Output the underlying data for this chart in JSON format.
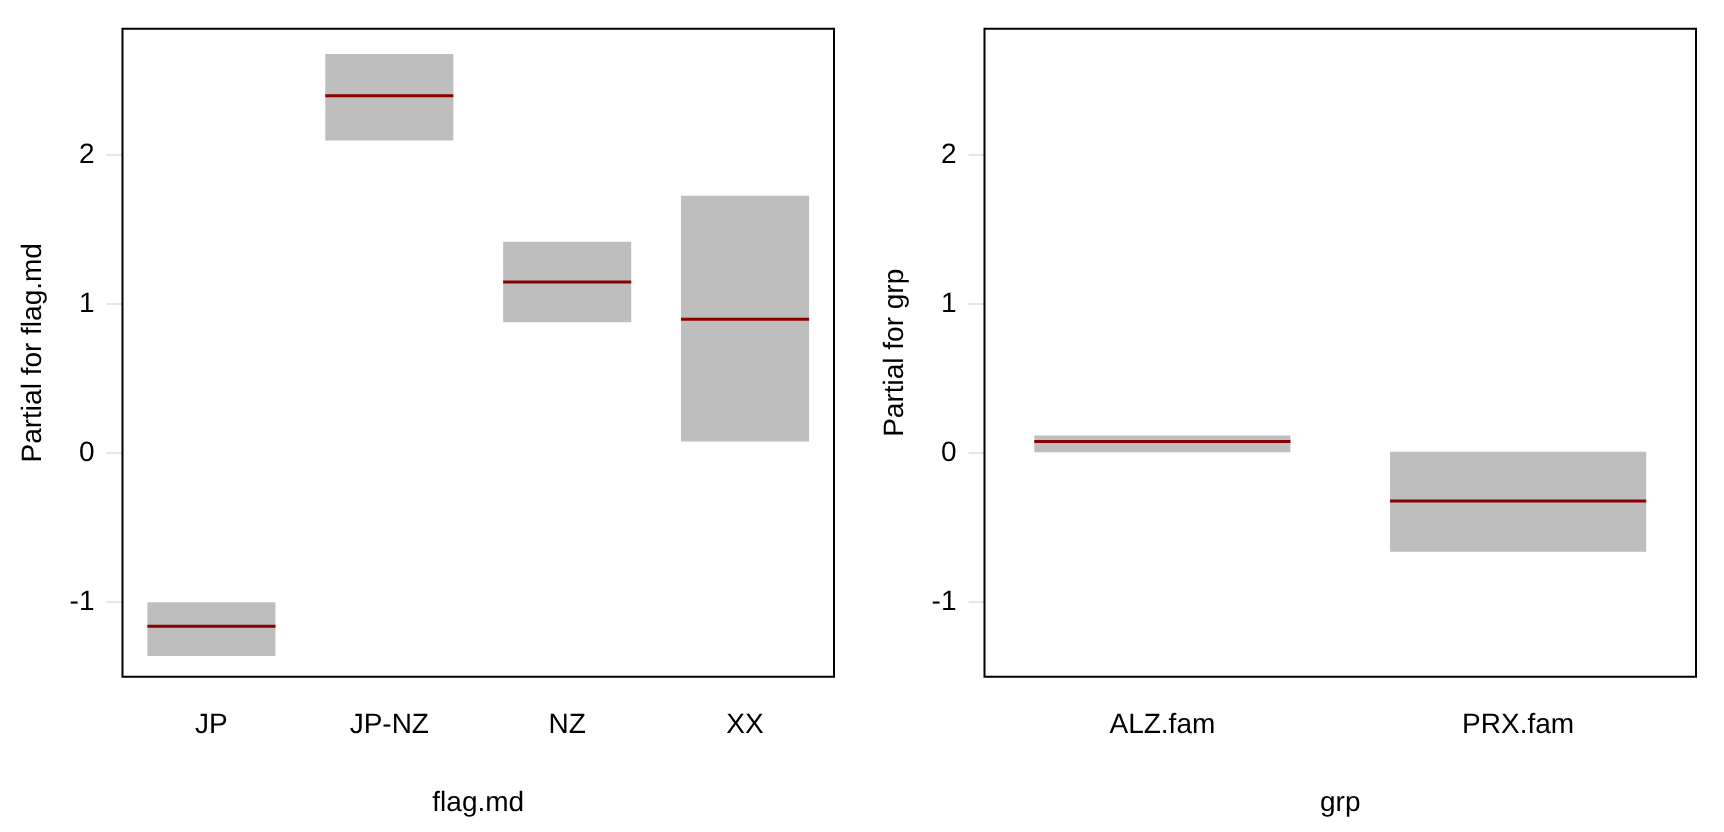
{
  "chart_data": [
    {
      "type": "box",
      "xlabel": "flag.md",
      "ylabel": "Partial for flag.md",
      "categories": [
        "JP",
        "JP-NZ",
        "NZ",
        "XX"
      ],
      "series": [
        {
          "color": "#bebebe",
          "boxes": [
            {
              "low": -1.36,
              "q1": -1.36,
              "median": -1.16,
              "q3": -1.0,
              "high": -1.0
            },
            {
              "low": 2.1,
              "q1": 2.1,
              "median": 2.4,
              "q3": 2.68,
              "high": 2.68
            },
            {
              "low": 0.88,
              "q1": 0.88,
              "median": 1.15,
              "q3": 1.42,
              "high": 1.42
            },
            {
              "low": 0.08,
              "q1": 0.08,
              "median": 0.9,
              "q3": 1.73,
              "high": 1.73
            }
          ]
        }
      ],
      "ylim": [
        -1.5,
        2.85
      ],
      "yticks": [
        -1,
        0,
        1,
        2
      ],
      "grid": false,
      "legend": false
    },
    {
      "type": "box",
      "xlabel": "grp",
      "ylabel": "Partial for grp",
      "categories": [
        "ALZ.fam",
        "PRX.fam"
      ],
      "series": [
        {
          "color": "#bebebe",
          "boxes": [
            {
              "low": 0.0,
              "q1": 0.0,
              "median": 0.08,
              "q3": 0.12,
              "high": 0.12
            },
            {
              "low": -0.66,
              "q1": -0.66,
              "median": -0.32,
              "q3": 0.01,
              "high": 0.01
            }
          ]
        }
      ],
      "ylim": [
        -1.5,
        2.85
      ],
      "yticks": [
        -1,
        0,
        1,
        2
      ],
      "grid": false,
      "legend": false
    }
  ]
}
